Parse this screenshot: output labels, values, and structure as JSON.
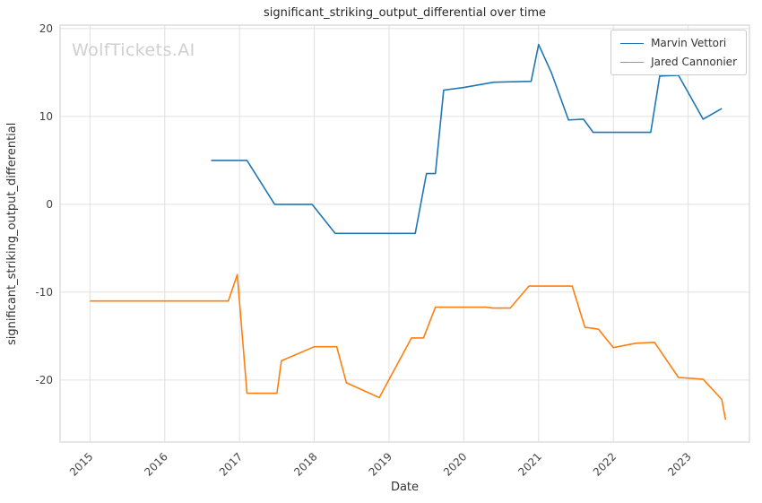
{
  "watermark": "WolfTickets.AI",
  "chart_data": {
    "type": "line",
    "title": "significant_striking_output_differential over time",
    "xlabel": "Date",
    "ylabel": "significant_striking_output_differential",
    "xlim": [
      2014.6,
      2023.82
    ],
    "ylim": [
      -27.05,
      20.4
    ],
    "xticks": [
      2015,
      2016,
      2017,
      2018,
      2019,
      2020,
      2021,
      2022,
      2023
    ],
    "yticks": [
      -20,
      -10,
      0,
      10,
      20
    ],
    "grid": true,
    "legend_position": "top-right",
    "grid_color": "#e0e0e0",
    "border_color": "#d5d5d5",
    "tick_color": "#444444",
    "series": [
      {
        "name": "Marvin Vettori",
        "color": "#1f77b4",
        "points": [
          [
            2016.62,
            5.0
          ],
          [
            2017.1,
            5.0
          ],
          [
            2017.47,
            0.0
          ],
          [
            2017.97,
            0.0
          ],
          [
            2018.28,
            -3.3
          ],
          [
            2019.35,
            -3.3
          ],
          [
            2019.5,
            3.5
          ],
          [
            2019.62,
            3.5
          ],
          [
            2019.73,
            13.0
          ],
          [
            2020.0,
            13.3
          ],
          [
            2020.4,
            13.9
          ],
          [
            2020.9,
            14.0
          ],
          [
            2021.0,
            18.2
          ],
          [
            2021.17,
            15.0
          ],
          [
            2021.4,
            9.6
          ],
          [
            2021.6,
            9.7
          ],
          [
            2021.73,
            8.2
          ],
          [
            2022.5,
            8.2
          ],
          [
            2022.62,
            14.6
          ],
          [
            2022.87,
            14.7
          ],
          [
            2023.2,
            9.7
          ],
          [
            2023.45,
            10.9
          ]
        ]
      },
      {
        "name": "Jared Cannonier",
        "color": "#ff7f0e",
        "points": [
          [
            2015.0,
            -11.0
          ],
          [
            2016.85,
            -11.0
          ],
          [
            2016.97,
            -8.0
          ],
          [
            2017.1,
            -21.5
          ],
          [
            2017.5,
            -21.5
          ],
          [
            2017.56,
            -17.8
          ],
          [
            2018.0,
            -16.2
          ],
          [
            2018.3,
            -16.2
          ],
          [
            2018.43,
            -20.3
          ],
          [
            2018.87,
            -22.0
          ],
          [
            2019.3,
            -15.2
          ],
          [
            2019.46,
            -15.2
          ],
          [
            2019.62,
            -11.7
          ],
          [
            2020.3,
            -11.7
          ],
          [
            2020.38,
            -11.8
          ],
          [
            2020.62,
            -11.8
          ],
          [
            2020.87,
            -9.3
          ],
          [
            2021.45,
            -9.3
          ],
          [
            2021.62,
            -14.0
          ],
          [
            2021.8,
            -14.2
          ],
          [
            2022.0,
            -16.3
          ],
          [
            2022.3,
            -15.8
          ],
          [
            2022.55,
            -15.7
          ],
          [
            2022.87,
            -19.7
          ],
          [
            2023.2,
            -19.9
          ],
          [
            2023.45,
            -22.2
          ],
          [
            2023.5,
            -24.5
          ]
        ]
      }
    ]
  }
}
